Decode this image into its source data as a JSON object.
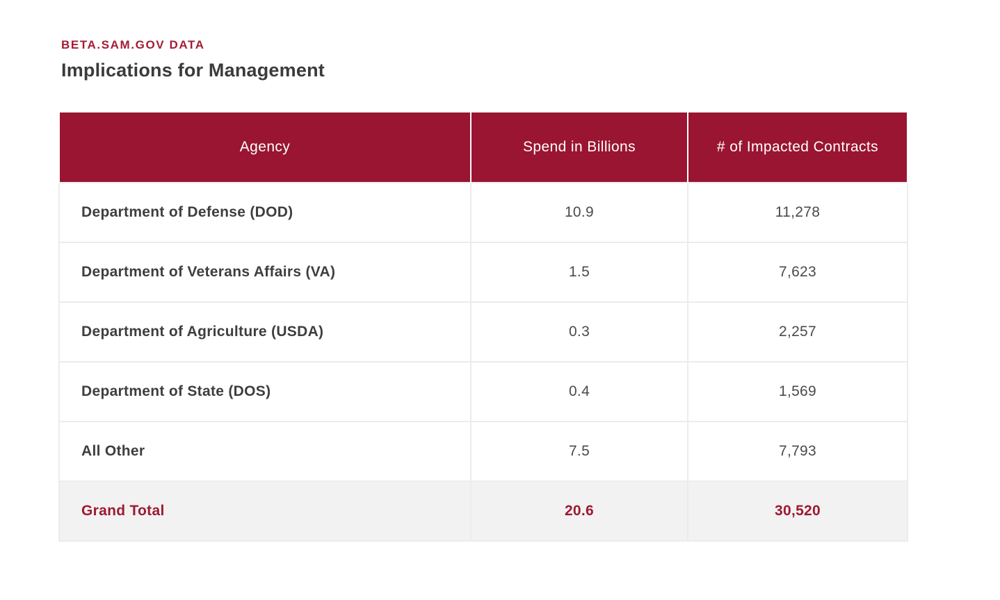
{
  "page": {
    "eyebrow": "BETA.SAM.GOV DATA",
    "title": "Implications for Management"
  },
  "colors": {
    "brand_maroon_header": "#991531",
    "eyebrow_text": "#A31D34",
    "title_text": "#3B3B3B",
    "body_text": "#3E3E3E",
    "number_text": "#4A4A4A",
    "grand_total_text": "#9C1A33",
    "grand_total_bg": "#F2F2F2",
    "grid_border": "#ECECEC"
  },
  "table": {
    "columns": [
      "Agency",
      "Spend in Billions",
      "# of Impacted Contracts"
    ],
    "rows": [
      {
        "agency": "Department of Defense (DOD)",
        "spend": "10.9",
        "contracts": "11,278"
      },
      {
        "agency": "Department of Veterans Affairs (VA)",
        "spend": "1.5",
        "contracts": "7,623"
      },
      {
        "agency": "Department of Agriculture (USDA)",
        "spend": "0.3",
        "contracts": "2,257"
      },
      {
        "agency": "Department of State (DOS)",
        "spend": "0.4",
        "contracts": "1,569"
      },
      {
        "agency": "All Other",
        "spend": "7.5",
        "contracts": "7,793"
      }
    ],
    "grand_total": {
      "agency": "Grand Total",
      "spend": "20.6",
      "contracts": "30,520"
    }
  }
}
